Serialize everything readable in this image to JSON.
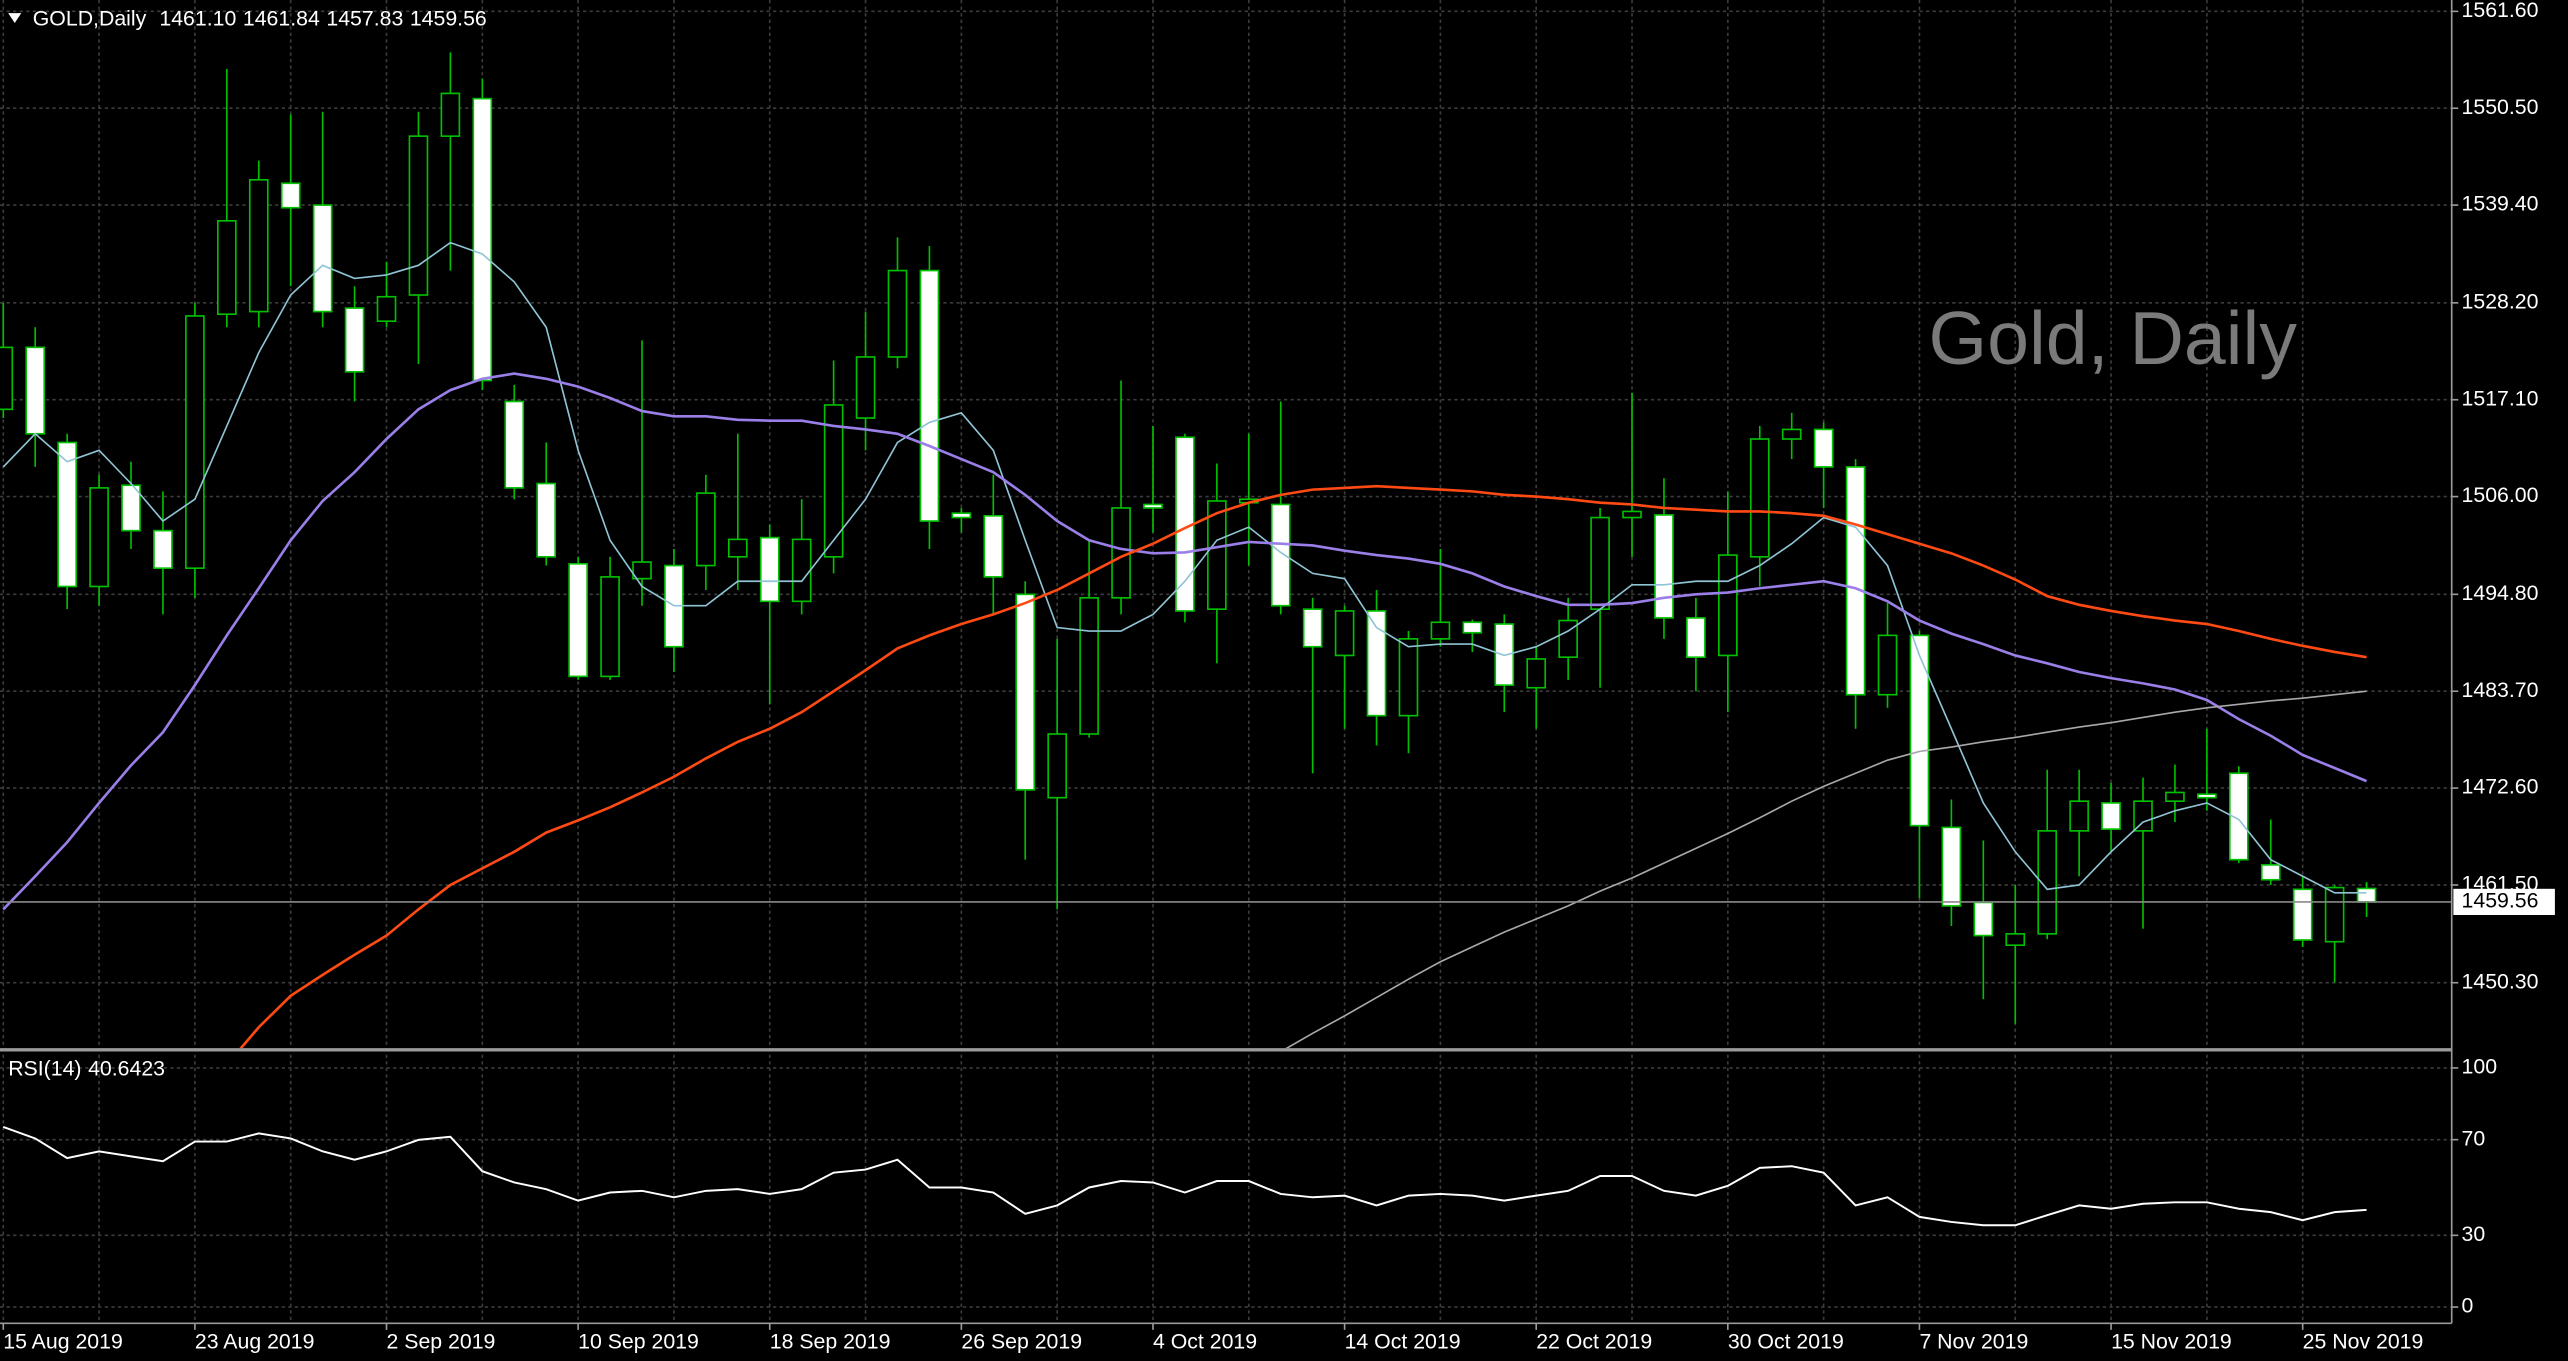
{
  "chart_data": {
    "type": "candlestick",
    "symbol": "GOLD,Daily",
    "last_bar_labels": [
      "1461.10",
      "1461.84",
      "1457.83",
      "1459.56"
    ],
    "watermark": "Gold, Daily",
    "categories": [
      "15 Aug 2019",
      null,
      null,
      null,
      null,
      null,
      "23 Aug 2019",
      null,
      null,
      null,
      null,
      null,
      "2 Sep 2019",
      null,
      null,
      null,
      null,
      null,
      "10 Sep 2019",
      null,
      null,
      null,
      null,
      null,
      "18 Sep 2019",
      null,
      null,
      null,
      null,
      null,
      "26 Sep 2019",
      null,
      null,
      null,
      null,
      null,
      "4 Oct 2019",
      null,
      null,
      null,
      null,
      null,
      "14 Oct 2019",
      null,
      null,
      null,
      null,
      null,
      "22 Oct 2019",
      null,
      null,
      null,
      null,
      null,
      "30 Oct 2019",
      null,
      null,
      null,
      null,
      null,
      "7 Nov 2019",
      null,
      null,
      null,
      null,
      null,
      "15 Nov 2019",
      null,
      null,
      null,
      null,
      null,
      "25 Nov 2019",
      null,
      null
    ],
    "open": [
      1516.0,
      1523.1,
      1512.2,
      1495.7,
      1507.3,
      1502.1,
      1497.8,
      1526.9,
      1527.2,
      1541.9,
      1539.4,
      1527.6,
      1526.1,
      1529.1,
      1547.3,
      1551.6,
      1516.9,
      1507.5,
      1498.3,
      1485.4,
      1496.6,
      1498.1,
      1498.1,
      1499.1,
      1501.3,
      1494.0,
      1499.1,
      1515.0,
      1522.0,
      1531.9,
      1504.1,
      1503.8,
      1494.8,
      1471.5,
      1478.8,
      1494.4,
      1505.1,
      1512.8,
      1493.1,
      1505.3,
      1505.1,
      1493.1,
      1487.8,
      1492.9,
      1480.9,
      1489.7,
      1491.6,
      1491.4,
      1484.1,
      1487.6,
      1493.1,
      1503.6,
      1503.9,
      1492.1,
      1487.8,
      1499.1,
      1512.6,
      1513.7,
      1509.4,
      1483.3,
      1490.1,
      1468.1,
      1459.5,
      1454.6,
      1455.9,
      1467.7,
      1470.9,
      1467.7,
      1471.1,
      1471.9,
      1474.3,
      1463.8,
      1461.0,
      1455.0,
      1461.1
    ],
    "high": [
      1528.2,
      1525.4,
      1513.2,
      1508.5,
      1510.0,
      1506.6,
      1528.2,
      1555.0,
      1544.5,
      1549.8,
      1550.1,
      1530.1,
      1532.9,
      1550.1,
      1556.9,
      1553.9,
      1518.8,
      1512.2,
      1499.1,
      1499.1,
      1523.9,
      1500.0,
      1508.5,
      1513.2,
      1502.8,
      1505.7,
      1521.6,
      1527.2,
      1535.7,
      1534.7,
      1504.7,
      1508.5,
      1496.3,
      1489.7,
      1501.0,
      1519.3,
      1514.1,
      1513.2,
      1509.8,
      1513.2,
      1516.9,
      1494.4,
      1493.5,
      1495.3,
      1490.6,
      1500.0,
      1491.9,
      1492.5,
      1488.8,
      1494.4,
      1504.7,
      1517.9,
      1508.1,
      1494.4,
      1506.6,
      1514.1,
      1515.6,
      1514.5,
      1510.3,
      1493.8,
      1490.6,
      1471.3,
      1466.6,
      1461.5,
      1474.7,
      1474.7,
      1473.2,
      1473.8,
      1475.3,
      1479.4,
      1475.1,
      1469.0,
      1462.5,
      1461.5,
      1461.84
    ],
    "low": [
      1515.0,
      1509.4,
      1493.1,
      1493.5,
      1500.0,
      1492.5,
      1494.4,
      1525.4,
      1525.4,
      1530.1,
      1525.4,
      1516.9,
      1525.4,
      1521.2,
      1531.9,
      1518.2,
      1505.7,
      1498.1,
      1485.0,
      1485.0,
      1493.5,
      1485.9,
      1495.3,
      1495.3,
      1482.2,
      1492.5,
      1497.2,
      1511.3,
      1520.7,
      1500.0,
      1501.9,
      1492.5,
      1464.4,
      1458.7,
      1478.4,
      1492.5,
      1501.9,
      1491.6,
      1486.9,
      1498.1,
      1492.5,
      1474.3,
      1479.4,
      1477.5,
      1476.6,
      1488.8,
      1488.2,
      1481.3,
      1479.4,
      1485.0,
      1484.1,
      1499.1,
      1489.7,
      1483.7,
      1481.3,
      1495.7,
      1510.3,
      1504.7,
      1479.4,
      1481.8,
      1460.0,
      1456.8,
      1448.4,
      1445.6,
      1455.3,
      1462.5,
      1465.3,
      1456.5,
      1468.7,
      1470.0,
      1464.0,
      1461.5,
      1454.4,
      1450.3,
      1457.83
    ],
    "close": [
      1523.1,
      1513.2,
      1495.7,
      1507.0,
      1502.1,
      1497.8,
      1526.7,
      1537.6,
      1542.3,
      1539.1,
      1527.2,
      1520.3,
      1528.9,
      1547.3,
      1552.2,
      1519.3,
      1507.0,
      1499.1,
      1485.4,
      1496.8,
      1498.5,
      1488.8,
      1506.4,
      1501.1,
      1494.0,
      1501.1,
      1516.5,
      1522.0,
      1531.9,
      1503.2,
      1503.6,
      1496.8,
      1472.4,
      1478.8,
      1494.4,
      1504.7,
      1504.7,
      1492.9,
      1505.5,
      1505.7,
      1493.5,
      1488.8,
      1492.9,
      1480.9,
      1489.7,
      1491.6,
      1490.4,
      1484.4,
      1487.4,
      1491.8,
      1503.6,
      1504.3,
      1492.1,
      1487.6,
      1499.3,
      1512.6,
      1513.7,
      1509.4,
      1483.3,
      1490.1,
      1468.3,
      1459.1,
      1455.7,
      1455.9,
      1467.7,
      1471.1,
      1467.9,
      1471.1,
      1472.1,
      1471.5,
      1464.4,
      1462.1,
      1455.2,
      1461.2,
      1459.56
    ],
    "bull_color": "#000000",
    "bear_color": "#ffffff",
    "wick_color": "#00c000",
    "series": [
      {
        "color": "#8fc4d4",
        "values": [
          1509.4,
          1513.2,
          1510.0,
          1511.3,
          1507.5,
          1503.2,
          1505.7,
          1514.1,
          1522.5,
          1529.1,
          1532.5,
          1531.0,
          1531.4,
          1532.5,
          1535.1,
          1533.8,
          1530.6,
          1525.4,
          1511.3,
          1501.0,
          1495.7,
          1493.5,
          1493.5,
          1496.3,
          1496.3,
          1496.3,
          1501.0,
          1505.7,
          1512.2,
          1514.5,
          1515.6,
          1511.3,
          1501.0,
          1491.0,
          1490.6,
          1490.6,
          1492.5,
          1496.3,
          1501.0,
          1502.5,
          1499.6,
          1497.2,
          1496.6,
          1491.0,
          1488.8,
          1489.1,
          1489.1,
          1487.8,
          1488.8,
          1490.6,
          1493.1,
          1495.9,
          1495.9,
          1496.3,
          1496.3,
          1498.1,
          1500.6,
          1503.6,
          1502.5,
          1498.1,
          1487.8,
          1479.4,
          1470.9,
          1465.3,
          1461.0,
          1461.5,
          1465.3,
          1468.7,
          1470.0,
          1470.9,
          1469.0,
          1464.4,
          1462.5,
          1460.6,
          1460.6
        ]
      },
      {
        "color": "#9a7fe8",
        "values": [
          1458.7,
          1462.5,
          1466.4,
          1470.9,
          1475.2,
          1479.0,
          1484.4,
          1490.1,
          1495.5,
          1501.0,
          1505.5,
          1508.8,
          1512.6,
          1516.0,
          1518.2,
          1519.5,
          1520.1,
          1519.5,
          1518.6,
          1517.3,
          1515.8,
          1515.2,
          1515.2,
          1514.8,
          1514.7,
          1514.7,
          1514.1,
          1513.7,
          1513.2,
          1511.8,
          1510.3,
          1508.8,
          1506.2,
          1503.2,
          1501.0,
          1500.0,
          1499.5,
          1499.6,
          1500.2,
          1500.8,
          1500.6,
          1500.4,
          1499.8,
          1499.3,
          1498.9,
          1498.3,
          1497.2,
          1495.7,
          1494.6,
          1493.6,
          1493.6,
          1493.8,
          1494.4,
          1494.8,
          1495.0,
          1495.5,
          1495.9,
          1496.3,
          1495.5,
          1494.0,
          1491.8,
          1490.3,
          1489.1,
          1487.8,
          1486.9,
          1485.9,
          1485.2,
          1484.6,
          1483.9,
          1482.7,
          1480.5,
          1478.6,
          1476.4,
          1474.9,
          1473.4
        ]
      },
      {
        "color": "#ff4a14",
        "values": [
          null,
          null,
          null,
          null,
          null,
          null,
          null,
          1440.9,
          1445.2,
          1448.8,
          1451.2,
          1453.5,
          1455.7,
          1458.7,
          1461.5,
          1463.4,
          1465.3,
          1467.5,
          1468.9,
          1470.4,
          1472.1,
          1473.9,
          1476.0,
          1477.9,
          1479.4,
          1481.3,
          1483.7,
          1486.1,
          1488.6,
          1490.1,
          1491.4,
          1492.5,
          1493.8,
          1495.3,
          1497.2,
          1499.1,
          1500.6,
          1502.4,
          1504.1,
          1505.3,
          1506.2,
          1506.8,
          1507.0,
          1507.2,
          1507.0,
          1506.8,
          1506.6,
          1506.2,
          1506.0,
          1505.7,
          1505.3,
          1505.1,
          1504.7,
          1504.5,
          1504.3,
          1504.3,
          1504.1,
          1503.8,
          1502.8,
          1501.7,
          1500.6,
          1499.5,
          1498.1,
          1496.5,
          1494.6,
          1493.6,
          1492.9,
          1492.3,
          1491.8,
          1491.4,
          1490.6,
          1489.7,
          1488.9,
          1488.2,
          1487.6
        ]
      },
      {
        "color": "#a8a8a8",
        "values": [
          null,
          null,
          null,
          null,
          null,
          null,
          null,
          null,
          null,
          null,
          null,
          null,
          null,
          null,
          null,
          null,
          null,
          null,
          null,
          null,
          null,
          null,
          null,
          null,
          null,
          null,
          null,
          null,
          null,
          null,
          null,
          null,
          null,
          null,
          null,
          null,
          null,
          null,
          null,
          null,
          1442.4,
          1444.5,
          1446.5,
          1448.6,
          1450.7,
          1452.7,
          1454.4,
          1456.1,
          1457.6,
          1459.1,
          1460.8,
          1462.3,
          1464.0,
          1465.7,
          1467.4,
          1469.2,
          1471.1,
          1472.8,
          1474.3,
          1475.8,
          1476.8,
          1477.3,
          1477.9,
          1478.4,
          1479.0,
          1479.6,
          1480.1,
          1480.7,
          1481.3,
          1481.8,
          1482.2,
          1482.6,
          1482.9,
          1483.3,
          1483.7
        ]
      }
    ],
    "ylim": [
      1442.8,
      1562.9
    ],
    "yticks": [
      {
        "value": 1561.6,
        "label": "1561.60"
      },
      {
        "value": 1550.5,
        "label": "1550.50"
      },
      {
        "value": 1539.4,
        "label": "1539.40"
      },
      {
        "value": 1528.2,
        "label": "1528.20"
      },
      {
        "value": 1517.1,
        "label": "1517.10"
      },
      {
        "value": 1506.0,
        "label": "1506.00"
      },
      {
        "value": 1494.8,
        "label": "1494.80"
      },
      {
        "value": 1483.7,
        "label": "1483.70"
      },
      {
        "value": 1472.6,
        "label": "1472.60"
      },
      {
        "value": 1461.5,
        "label": "1461.50"
      },
      {
        "value": 1450.3,
        "label": "1450.30"
      }
    ],
    "grid": true,
    "rsi": {
      "title": "RSI(14)",
      "color": "#ffffff",
      "values": [
        75.3,
        70.5,
        62.3,
        65.1,
        63.0,
        61.0,
        69.2,
        69.2,
        72.6,
        70.5,
        65.1,
        61.6,
        65.1,
        69.9,
        71.2,
        56.8,
        52.1,
        49.3,
        44.5,
        47.9,
        48.6,
        45.9,
        48.6,
        49.3,
        47.3,
        49.3,
        56.2,
        57.5,
        61.6,
        50.0,
        50.0,
        47.9,
        39.0,
        42.5,
        50.0,
        52.7,
        52.1,
        47.9,
        52.7,
        52.7,
        47.3,
        45.9,
        46.6,
        42.5,
        46.6,
        47.3,
        46.6,
        44.5,
        46.6,
        48.6,
        54.8,
        54.8,
        48.6,
        46.6,
        50.7,
        58.2,
        58.9,
        56.2,
        42.5,
        45.9,
        37.7,
        35.6,
        34.2,
        34.2,
        38.4,
        42.5,
        41.1,
        43.2,
        43.8,
        43.8,
        41.1,
        39.7,
        36.3,
        39.7,
        40.6423
      ],
      "ylim": [
        -6.8,
        106.2
      ],
      "yticks": [
        100,
        70,
        30,
        0
      ]
    }
  }
}
